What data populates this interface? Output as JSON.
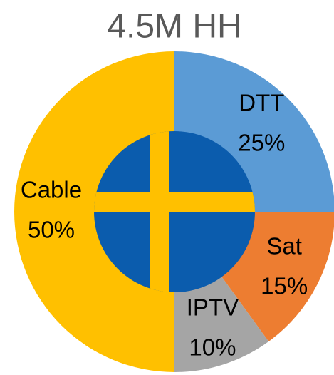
{
  "chart_data": {
    "type": "pie",
    "title": "4.5M HH",
    "categories": [
      "DTT",
      "Sat",
      "IPTV",
      "Cable"
    ],
    "values": [
      25,
      15,
      10,
      50
    ],
    "value_labels": [
      "25%",
      "15%",
      "10%",
      "50%"
    ],
    "colors": [
      "#5b9bd5",
      "#ed7d31",
      "#a5a5a5",
      "#ffc000"
    ]
  }
}
